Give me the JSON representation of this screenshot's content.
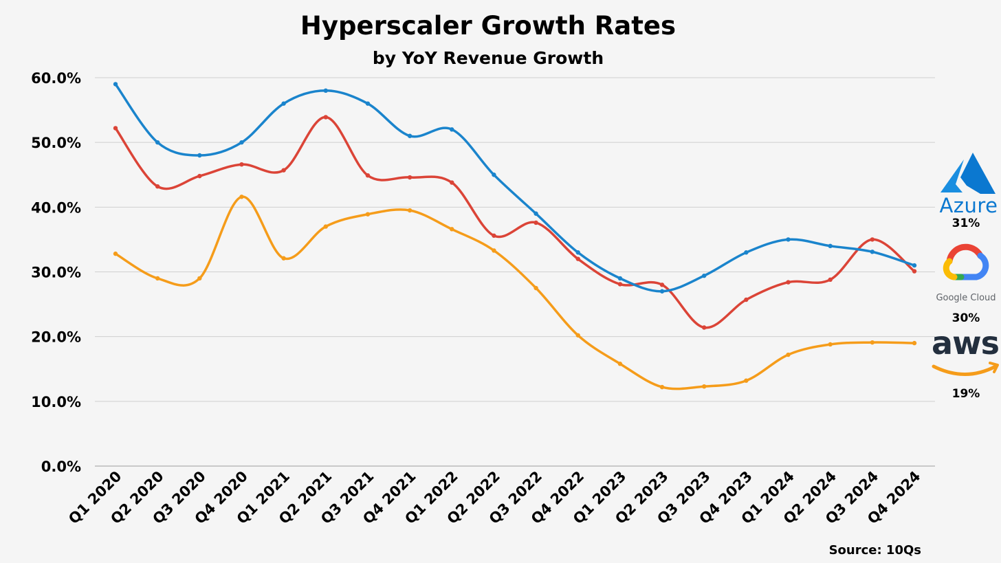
{
  "chart_data": {
    "type": "line",
    "title": "Hyperscaler Growth Rates",
    "subtitle": "by YoY Revenue Growth",
    "categories": [
      "Q1 2020",
      "Q2 2020",
      "Q3 2020",
      "Q4 2020",
      "Q1 2021",
      "Q2 2021",
      "Q3 2021",
      "Q4 2021",
      "Q1 2022",
      "Q2 2022",
      "Q3 2022",
      "Q4 2022",
      "Q1 2023",
      "Q2 2023",
      "Q3 2023",
      "Q4 2023",
      "Q1 2024",
      "Q2 2024",
      "Q3 2024",
      "Q4 2024"
    ],
    "yticks": [
      "0.0%",
      "10.0%",
      "20.0%",
      "30.0%",
      "40.0%",
      "50.0%",
      "60.0%"
    ],
    "ylim": [
      0,
      60
    ],
    "grid": true,
    "legend": "right, logos",
    "series": [
      {
        "name": "Azure",
        "color": "#1a84cc",
        "values": [
          59,
          50,
          48,
          50,
          56,
          58,
          56,
          51,
          52,
          45,
          39,
          33,
          29,
          27,
          29.4,
          33,
          35,
          34,
          33.1,
          31
        ],
        "end_label": "31%",
        "logo_icon": "azure-logo-icon"
      },
      {
        "name": "Google Cloud",
        "color": "#db4437",
        "values": [
          52.2,
          43.2,
          44.8,
          46.6,
          45.7,
          53.9,
          44.9,
          44.6,
          43.8,
          35.6,
          37.6,
          32,
          28.1,
          28,
          21.4,
          25.7,
          28.4,
          28.8,
          35,
          30.1
        ],
        "end_label": "30%",
        "logo_icon": "google-cloud-logo-icon"
      },
      {
        "name": "aws",
        "color": "#f59c1a",
        "values": [
          32.8,
          29,
          29,
          41.6,
          32.1,
          37,
          38.9,
          39.5,
          36.6,
          33.3,
          27.5,
          20.2,
          15.8,
          12.2,
          12.3,
          13.2,
          17.2,
          18.8,
          19.1,
          19
        ],
        "end_label": "19%",
        "logo_icon": "aws-logo-icon"
      }
    ],
    "source": "Source: 10Qs"
  }
}
